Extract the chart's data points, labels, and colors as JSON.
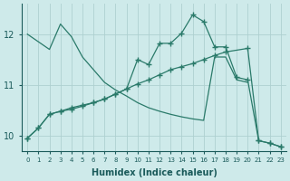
{
  "xlabel": "Humidex (Indice chaleur)",
  "bg_color": "#ceeaea",
  "grid_color": "#aed0d0",
  "line_color": "#2a7a6a",
  "xlim": [
    -0.5,
    23.5
  ],
  "ylim": [
    9.7,
    12.6
  ],
  "yticks": [
    10,
    11,
    12
  ],
  "xticks": [
    0,
    1,
    2,
    3,
    4,
    5,
    6,
    7,
    8,
    9,
    10,
    11,
    12,
    13,
    14,
    15,
    16,
    17,
    18,
    19,
    20,
    21,
    22,
    23
  ],
  "line1_x": [
    0,
    1,
    2,
    3,
    4,
    5,
    6,
    7,
    8,
    9,
    10,
    11,
    12,
    13,
    14,
    15,
    16,
    17,
    18,
    19,
    20
  ],
  "line1_y": [
    12.0,
    11.85,
    11.7,
    12.2,
    11.95,
    11.55,
    11.3,
    11.05,
    10.9,
    10.78,
    10.65,
    10.55,
    10.48,
    10.42,
    10.37,
    10.33,
    10.3,
    11.55,
    11.55,
    11.1,
    11.05
  ],
  "line1_markers": false,
  "line2_x": [
    0,
    1,
    2,
    3,
    4,
    5,
    6,
    7,
    8,
    9,
    10,
    11,
    12,
    13,
    14,
    15,
    16,
    17,
    18,
    20,
    21,
    22,
    23
  ],
  "line2_y": [
    9.95,
    10.15,
    10.42,
    10.48,
    10.52,
    10.58,
    10.65,
    10.72,
    10.82,
    10.92,
    11.02,
    11.1,
    11.2,
    11.3,
    11.36,
    11.42,
    11.5,
    11.58,
    11.65,
    11.72,
    9.9,
    9.85,
    9.78
  ],
  "line2_markers": true,
  "line3_x": [
    0,
    1,
    2,
    3,
    4,
    5,
    6,
    7,
    8,
    9,
    10,
    11,
    12,
    13,
    14,
    15,
    16,
    17,
    18,
    19,
    20,
    21,
    22,
    23
  ],
  "line3_y": [
    9.95,
    10.15,
    10.42,
    10.48,
    10.55,
    10.6,
    10.65,
    10.72,
    10.82,
    10.92,
    11.5,
    11.4,
    11.82,
    11.82,
    12.02,
    12.38,
    12.25,
    11.75,
    11.75,
    11.15,
    11.1,
    9.9,
    9.85,
    9.78
  ],
  "line3_markers": true
}
